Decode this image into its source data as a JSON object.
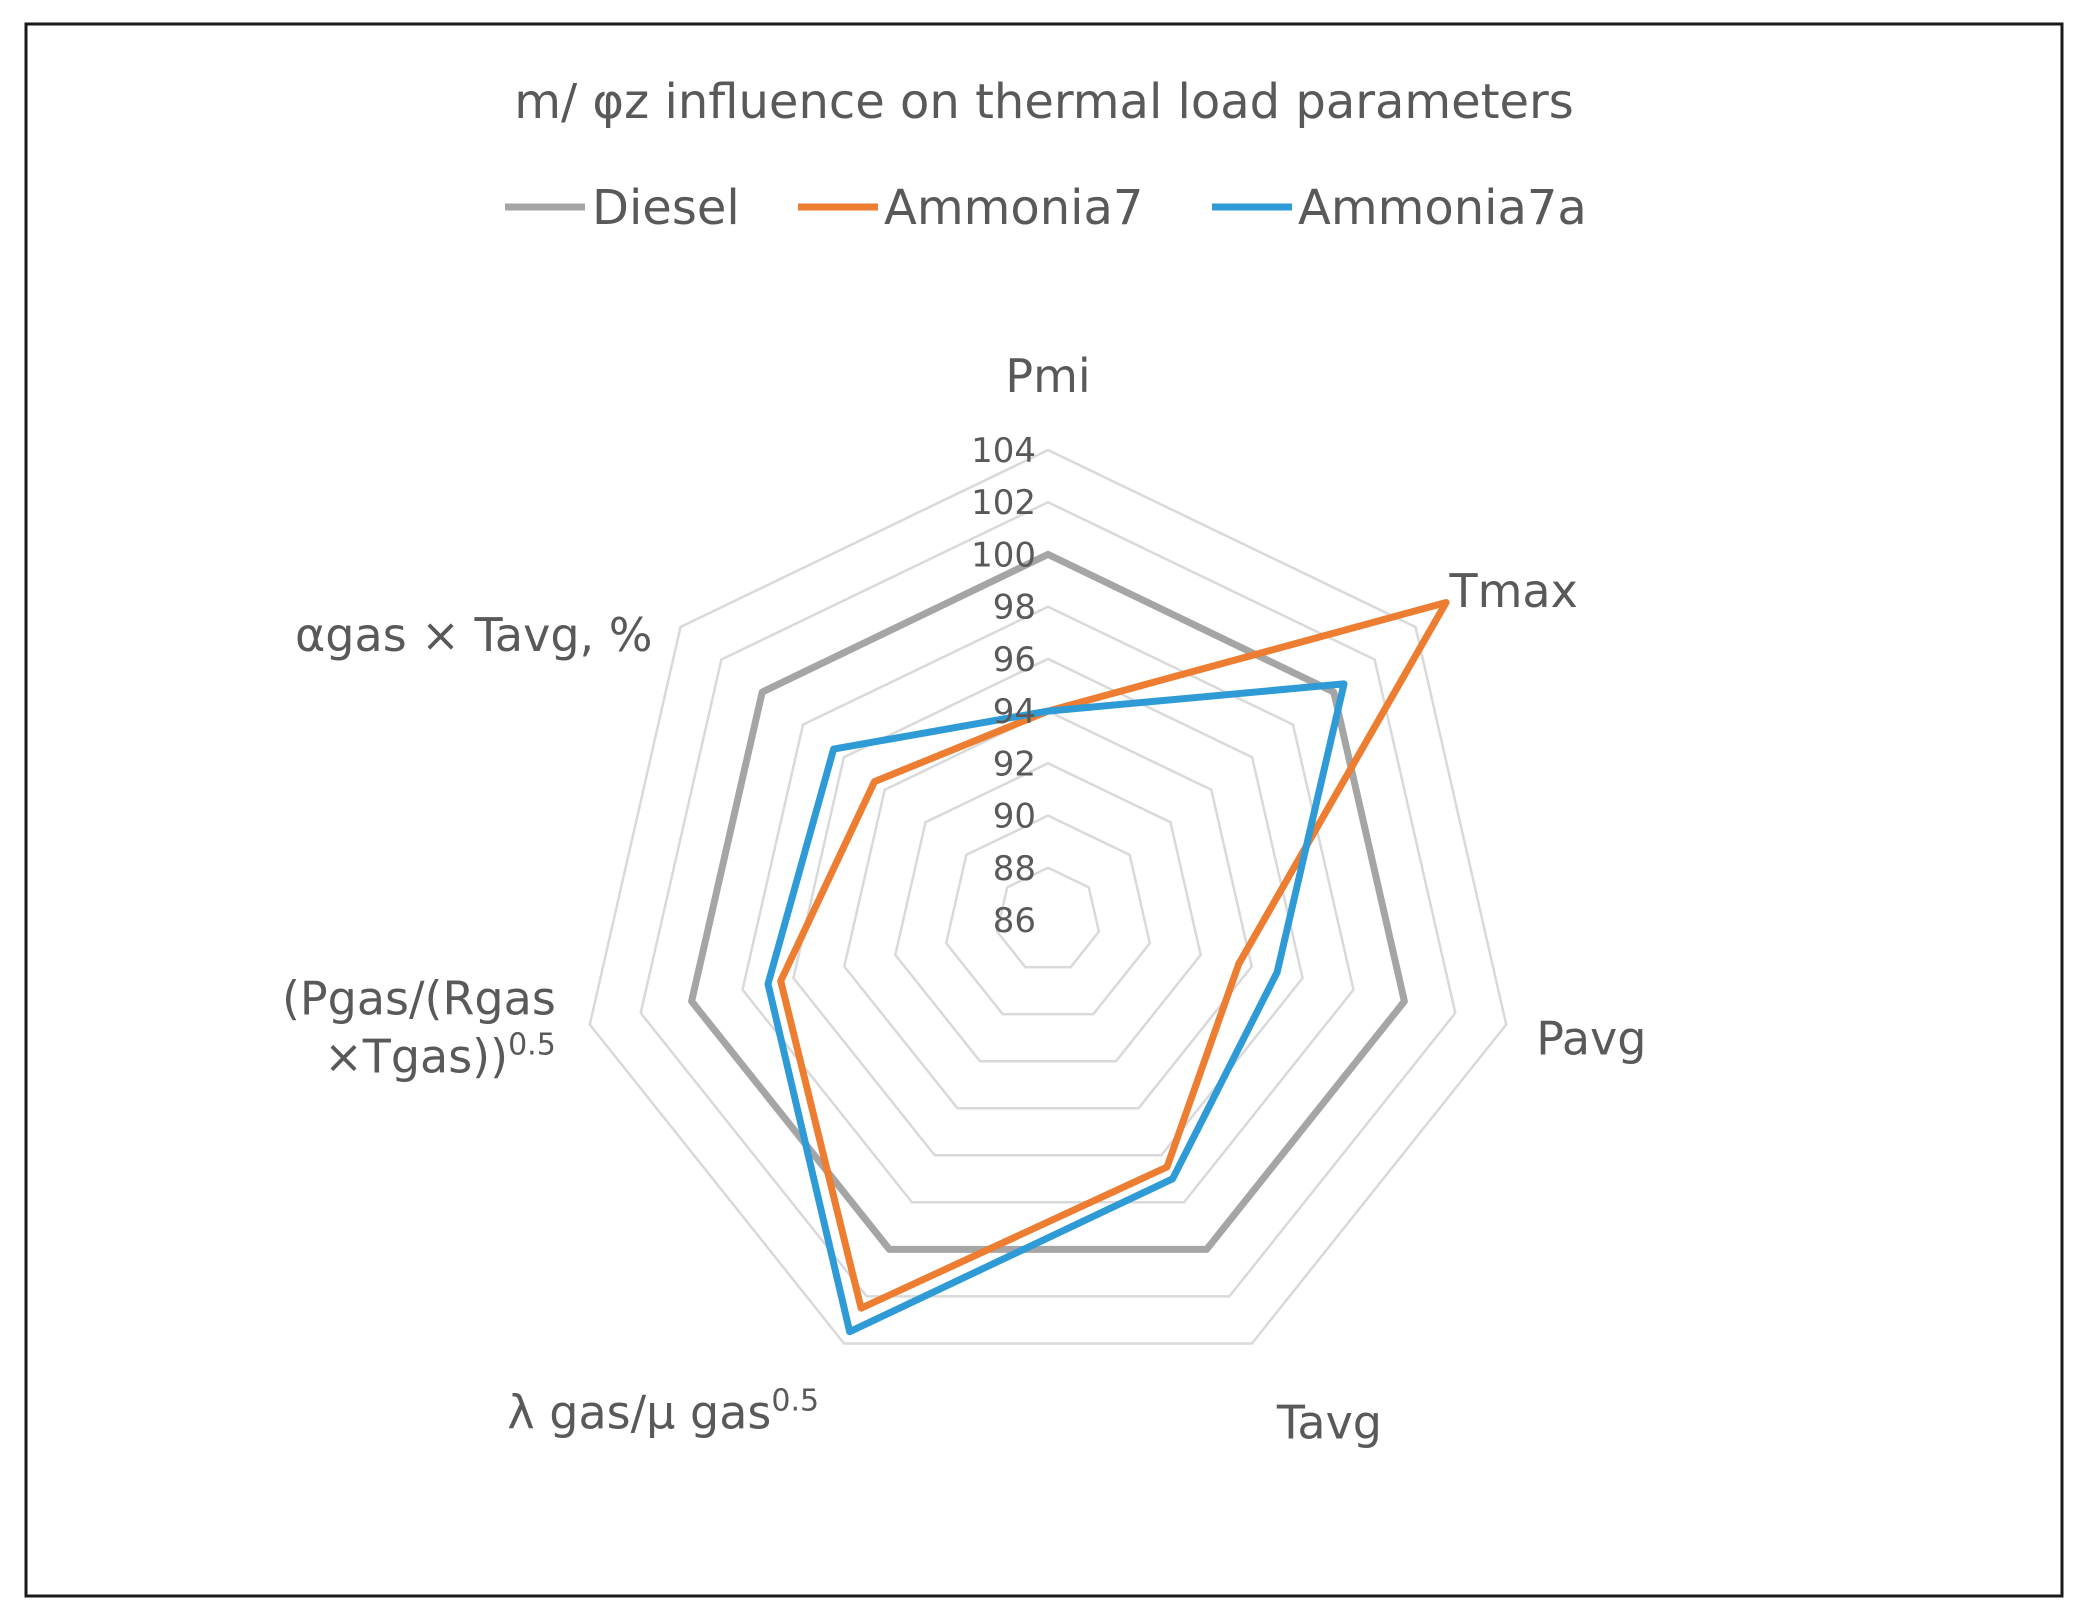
{
  "chart_data": {
    "type": "radar",
    "title": "m/ φz influence on thermal load parameters",
    "legend_position": "top",
    "grid": true,
    "range": [
      86,
      104
    ],
    "ticks": [
      86,
      88,
      90,
      92,
      94,
      96,
      98,
      100,
      102,
      104
    ],
    "tick_labels": [
      "86",
      "88",
      "90",
      "92",
      "94",
      "96",
      "98",
      "100",
      "102",
      "104"
    ],
    "axes": [
      {
        "label": "Pmi",
        "sup": ""
      },
      {
        "label": "Tmax",
        "sup": ""
      },
      {
        "label": "Pavg",
        "sup": ""
      },
      {
        "label": "Tavg",
        "sup": ""
      },
      {
        "label": "λ gas/μ gas",
        "sup": "0.5"
      },
      {
        "label": "(Pgas/(Rgas ×Tgas))",
        "sup": "0.5",
        "lines": [
          "(Pgas/(Rgas",
          "×Tgas))"
        ]
      },
      {
        "label": "αgas × Tavg, %",
        "sup": ""
      }
    ],
    "series": [
      {
        "name": "Diesel",
        "color": "#a5a5a5",
        "values": [
          100,
          100,
          100,
          100,
          100,
          100,
          100
        ]
      },
      {
        "name": "Ammonia7",
        "color": "#ed7d31",
        "values": [
          94,
          105.5,
          93.5,
          96.5,
          102.5,
          96.5,
          94.5
        ]
      },
      {
        "name": "Ammonia7a",
        "color": "#2e9bd6",
        "values": [
          94,
          100.5,
          95,
          97,
          103.5,
          97,
          96.5
        ]
      }
    ]
  }
}
